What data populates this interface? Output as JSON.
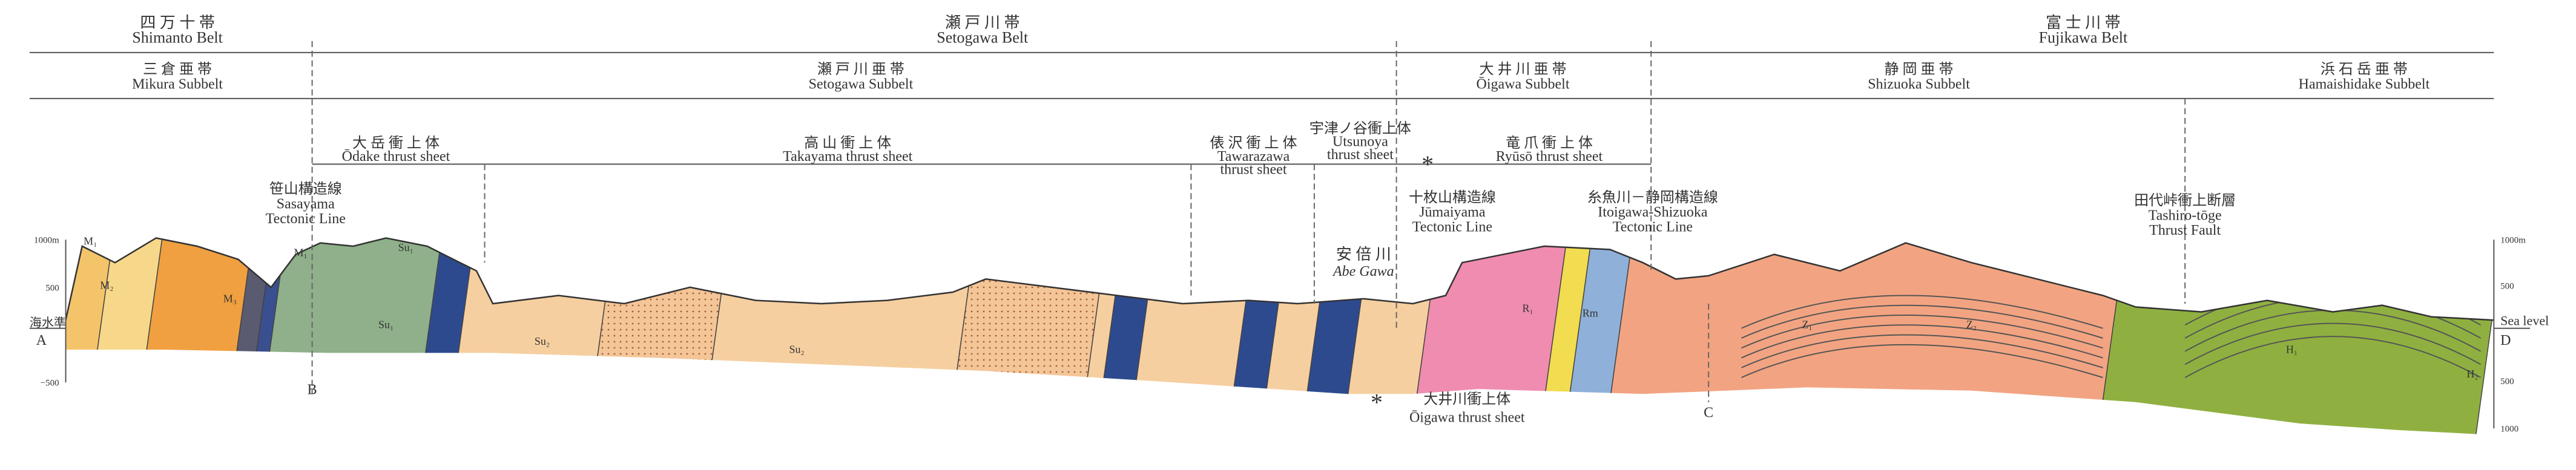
{
  "belts": [
    [
      "四 万 十 帯",
      "Shimanto Belt"
    ],
    [
      "瀬 戸 川 帯",
      "Setogawa Belt"
    ],
    [
      "富 士 川 帯",
      "Fujikawa Belt"
    ]
  ],
  "subbelts": [
    [
      "三 倉 亜 帯",
      "Mikura Subbelt"
    ],
    [
      "瀬 戸 川 亜 帯",
      "Setogawa Subbelt"
    ],
    [
      "大 井 川 亜 帯",
      "Ōigawa Subbelt"
    ],
    [
      "静 岡 亜 帯",
      "Shizuoka Subbelt"
    ],
    [
      "浜 石 岳 亜 帯",
      "Hamaishidake Subbelt"
    ]
  ],
  "thrust_sheets": [
    [
      "大 岳 衝 上 体",
      "Ōdake thrust sheet"
    ],
    [
      "高 山 衝 上 体",
      "Takayama thrust sheet"
    ],
    [
      "俵 沢 衝 上 体",
      "Tawarazawa",
      "thrust sheet"
    ],
    [
      "宇津ノ谷衝上体",
      "Utsunoya",
      "thrust sheet"
    ],
    [
      "竜 爪 衝 上 体",
      "Ryūsō thrust sheet"
    ]
  ],
  "tectonic_lines": [
    [
      "笹山構造線",
      "Sasayama",
      "Tectonic Line"
    ],
    [
      "十枚山構造線",
      "Jūmaiyama",
      "Tectonic Line"
    ],
    [
      "糸魚川－静岡構造線",
      "Itoigawa-Shizuoka",
      "Tectonic Line"
    ],
    [
      "田代峠衝上断層",
      "Tashiro-tōge",
      "Thrust Fault"
    ]
  ],
  "river": [
    "安 倍 川",
    "Abe Gawa"
  ],
  "oigawa_sheet": [
    "大井川衝上体",
    "Ōigawa thrust sheet"
  ],
  "marker": "*",
  "left_axis": {
    "top": "1000m",
    "mid": "500",
    "sea": "海水準",
    "low": "−500"
  },
  "right_axis": {
    "top": "1000m",
    "mid": "500",
    "sea": "Sea level",
    "low": "500",
    "bottom": "1000"
  },
  "points": {
    "A": "A",
    "B": "B",
    "C": "C",
    "D": "D"
  },
  "units": [
    "M₁",
    "M₂",
    "M₃",
    "M₁",
    "Su₁",
    "Su₁",
    "Su₂",
    "Su₂",
    "R₁",
    "Rm",
    "Z₁",
    "Z₂",
    "H₁",
    "H₂"
  ]
}
